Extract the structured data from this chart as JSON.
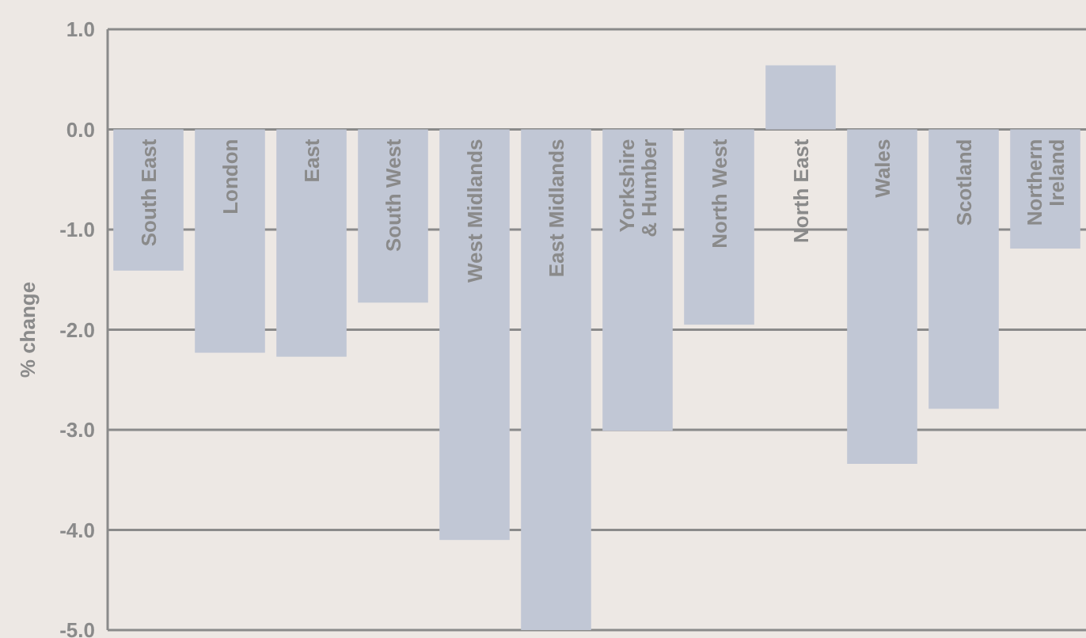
{
  "chart_data": {
    "type": "bar",
    "ylabel": "% change",
    "categories": [
      "South East",
      "London",
      "East",
      "South West",
      "West Midlands",
      "East Midlands",
      "Yorkshire\n& Humber",
      "North West",
      "North East",
      "Wales",
      "Scotland",
      "Northern\nIreland"
    ],
    "values": [
      -1.41,
      -2.23,
      -2.27,
      -1.73,
      -4.1,
      -5.0,
      -3.01,
      -1.95,
      0.64,
      -3.34,
      -2.79,
      -1.19
    ],
    "color": "#c1c7d5",
    "ylim": [
      -5,
      1
    ],
    "yticks": [
      {
        "value": 1,
        "label": "1.0"
      },
      {
        "value": 0,
        "label": "0.0"
      },
      {
        "value": -1,
        "label": "-1.0"
      },
      {
        "value": -2,
        "label": "-2.0"
      },
      {
        "value": -3,
        "label": "-3.0"
      },
      {
        "value": -4,
        "label": "-4.0"
      },
      {
        "value": -5,
        "label": "-5.0"
      }
    ],
    "grid": "y"
  }
}
